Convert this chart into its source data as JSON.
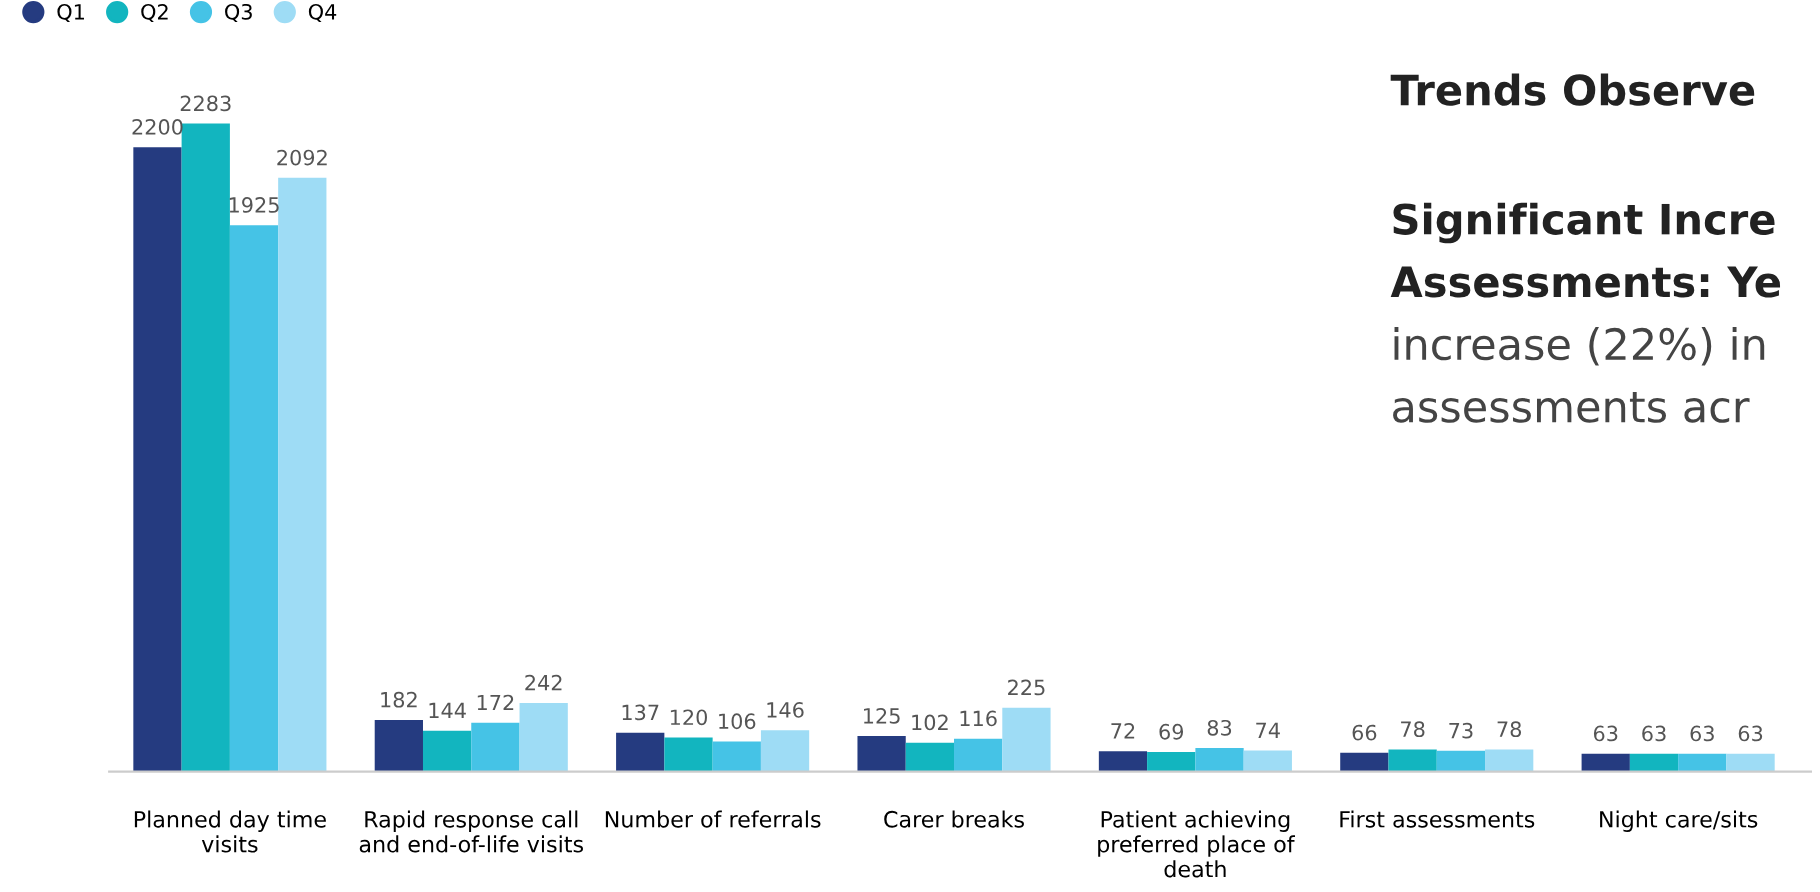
{
  "chart_data": {
    "type": "bar",
    "categories": [
      "Planned day time\nvisits",
      "Rapid response call\nand end-of-life visits",
      "Number of referrals",
      "Carer breaks",
      "Patient achieving\npreferred place of\ndeath",
      "First assessments",
      "Night care/sits"
    ],
    "series": [
      {
        "name": "Q1",
        "color": "#253b80",
        "values": [
          2200,
          182,
          137,
          125,
          72,
          66,
          63
        ]
      },
      {
        "name": "Q2",
        "color": "#12b5bf",
        "values": [
          2283,
          144,
          120,
          102,
          69,
          78,
          63
        ]
      },
      {
        "name": "Q3",
        "color": "#45c3e6",
        "values": [
          1925,
          172,
          106,
          116,
          83,
          73,
          63
        ]
      },
      {
        "name": "Q4",
        "color": "#9edcf5",
        "values": [
          2092,
          242,
          146,
          225,
          74,
          78,
          63
        ]
      }
    ],
    "data_labels": true,
    "legend": "top left",
    "marker": "circle",
    "grid": false,
    "tick_labels": "x",
    "annotations": [
      "Trends Observe",
      "Significant Incre",
      "Assessments: Ye",
      "increase (22%) in",
      "assessments acr"
    ]
  }
}
